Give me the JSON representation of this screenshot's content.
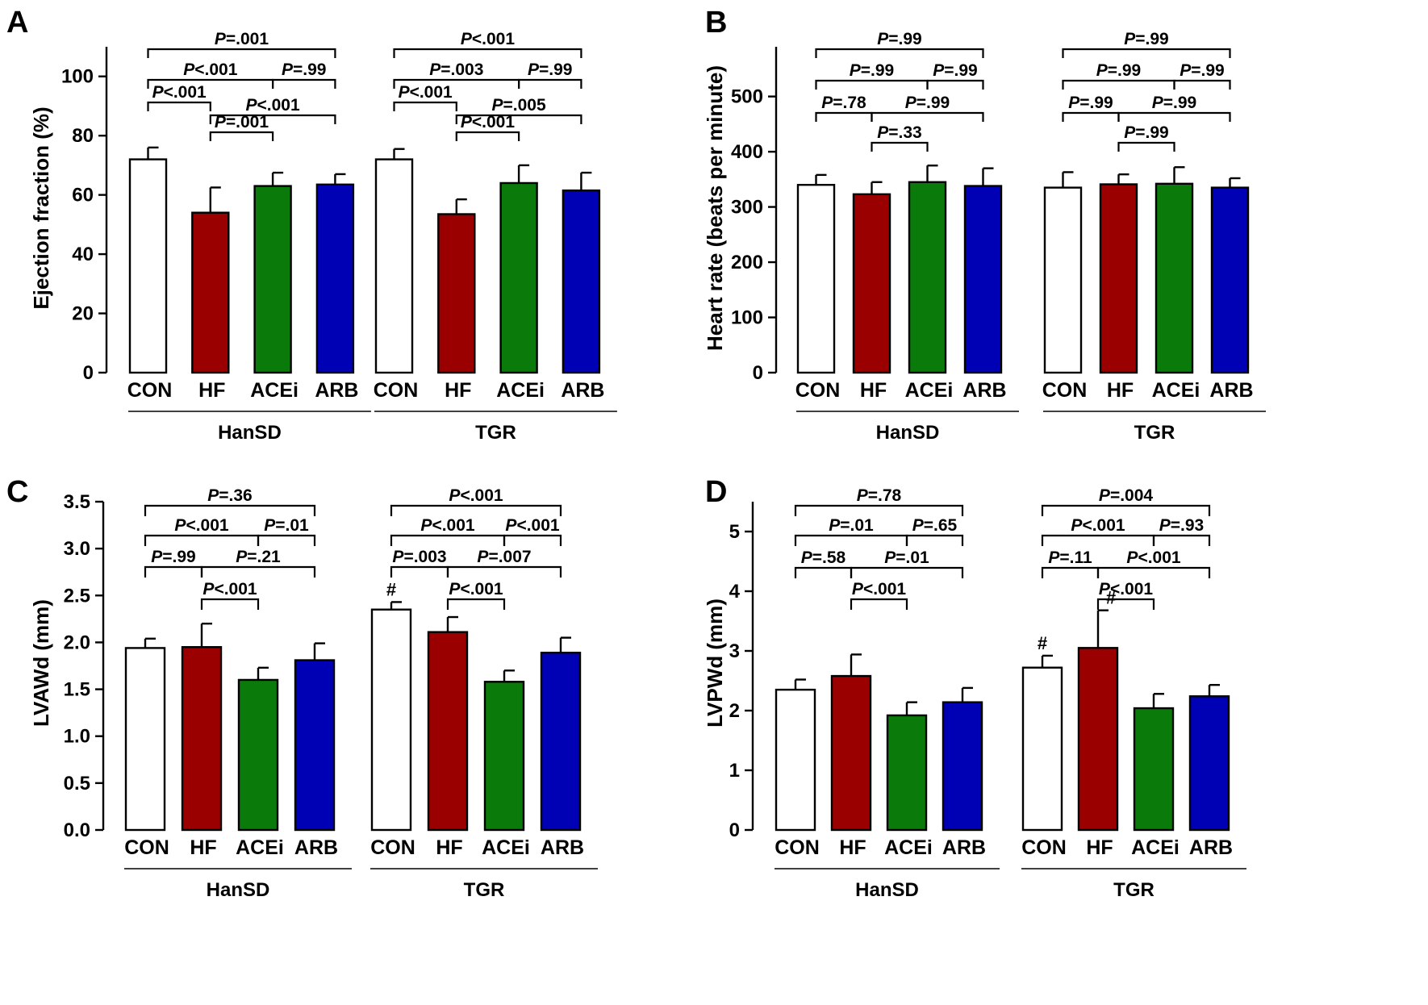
{
  "colors": {
    "CON": "#ffffff",
    "HF": "#9b0000",
    "ACEi": "#0a7a0a",
    "ARB": "#0000b4"
  },
  "chart_data": [
    {
      "type": "bar",
      "panel": "A",
      "ylabel": "Ejection fraction (%)",
      "ylim": [
        0,
        110
      ],
      "yticks": [
        "0",
        "20",
        "40",
        "60",
        "80",
        "100"
      ],
      "ytick_values": [
        0,
        20,
        40,
        60,
        80,
        100
      ],
      "categories": [
        "CON",
        "HF",
        "ACEi",
        "ARB"
      ],
      "groups": [
        {
          "name": "HanSD",
          "values": [
            72,
            54,
            63,
            63.5
          ],
          "errors": [
            4,
            8.5,
            4.5,
            3.5
          ],
          "marks": [
            "",
            "",
            "",
            ""
          ],
          "comparisons": [
            [
              "CON",
              "HF",
              "P<.001"
            ],
            [
              "HF",
              "ACEi",
              "P=.001"
            ],
            [
              "HF",
              "ARB",
              "P<.001"
            ],
            [
              "CON",
              "ACEi",
              "P<.001"
            ],
            [
              "ACEi",
              "ARB",
              "P=.99"
            ],
            [
              "CON",
              "ARB",
              "P=.001"
            ]
          ]
        },
        {
          "name": "TGR",
          "values": [
            72,
            53.5,
            64,
            61.5
          ],
          "errors": [
            3.5,
            5,
            6,
            6
          ],
          "marks": [
            "",
            "",
            "",
            ""
          ],
          "comparisons": [
            [
              "CON",
              "HF",
              "P<.001"
            ],
            [
              "HF",
              "ACEi",
              "P<.001"
            ],
            [
              "HF",
              "ARB",
              "P=.005"
            ],
            [
              "CON",
              "ACEi",
              "P=.003"
            ],
            [
              "ACEi",
              "ARB",
              "P=.99"
            ],
            [
              "CON",
              "ARB",
              "P<.001"
            ]
          ]
        }
      ]
    },
    {
      "type": "bar",
      "panel": "B",
      "ylabel": "Heart rate (beats per minute)",
      "ylim": [
        0,
        590
      ],
      "yticks": [
        "0",
        "100",
        "200",
        "300",
        "400",
        "500"
      ],
      "ytick_values": [
        0,
        100,
        200,
        300,
        400,
        500
      ],
      "categories": [
        "CON",
        "HF",
        "ACEi",
        "ARB"
      ],
      "groups": [
        {
          "name": "HanSD",
          "values": [
            340,
            323,
            345,
            338
          ],
          "errors": [
            18,
            22,
            30,
            32
          ],
          "marks": [
            "",
            "",
            "",
            ""
          ],
          "comparisons": [
            [
              "CON",
              "HF",
              "P=.78"
            ],
            [
              "HF",
              "ACEi",
              "P=.33"
            ],
            [
              "HF",
              "ARB",
              "P=.99"
            ],
            [
              "CON",
              "ACEi",
              "P=.99"
            ],
            [
              "ACEi",
              "ARB",
              "P=.99"
            ],
            [
              "CON",
              "ARB",
              "P=.99"
            ]
          ]
        },
        {
          "name": "TGR",
          "values": [
            335,
            341,
            342,
            335
          ],
          "errors": [
            28,
            18,
            30,
            17
          ],
          "marks": [
            "",
            "",
            "",
            ""
          ],
          "comparisons": [
            [
              "CON",
              "HF",
              "P=.99"
            ],
            [
              "HF",
              "ACEi",
              "P=.99"
            ],
            [
              "HF",
              "ARB",
              "P=.99"
            ],
            [
              "CON",
              "ACEi",
              "P=.99"
            ],
            [
              "ACEi",
              "ARB",
              "P=.99"
            ],
            [
              "CON",
              "ARB",
              "P=.99"
            ]
          ]
        }
      ]
    },
    {
      "type": "bar",
      "panel": "C",
      "ylabel": "LVAWd (mm)",
      "ylim": [
        0,
        3.5
      ],
      "yticks": [
        "0.0",
        "0.5",
        "1.0",
        "1.5",
        "2.0",
        "2.5",
        "3.0",
        "3.5"
      ],
      "ytick_values": [
        0,
        0.5,
        1,
        1.5,
        2,
        2.5,
        3,
        3.5
      ],
      "categories": [
        "CON",
        "HF",
        "ACEi",
        "ARB"
      ],
      "groups": [
        {
          "name": "HanSD",
          "values": [
            1.94,
            1.95,
            1.6,
            1.81
          ],
          "errors": [
            0.1,
            0.25,
            0.13,
            0.18
          ],
          "marks": [
            "",
            "",
            "",
            ""
          ],
          "comparisons": [
            [
              "CON",
              "HF",
              "P=.99"
            ],
            [
              "HF",
              "ACEi",
              "P<.001"
            ],
            [
              "HF",
              "ARB",
              "P=.21"
            ],
            [
              "CON",
              "ACEi",
              "P<.001"
            ],
            [
              "ACEi",
              "ARB",
              "P=.01"
            ],
            [
              "CON",
              "ARB",
              "P=.36"
            ]
          ]
        },
        {
          "name": "TGR",
          "values": [
            2.35,
            2.11,
            1.58,
            1.89
          ],
          "errors": [
            0.08,
            0.16,
            0.12,
            0.16
          ],
          "marks": [
            "#",
            "",
            "",
            ""
          ],
          "comparisons": [
            [
              "CON",
              "HF",
              "P=.003"
            ],
            [
              "HF",
              "ACEi",
              "P<.001"
            ],
            [
              "HF",
              "ARB",
              "P=.007"
            ],
            [
              "CON",
              "ACEi",
              "P<.001"
            ],
            [
              "ACEi",
              "ARB",
              "P<.001"
            ],
            [
              "CON",
              "ARB",
              "P<.001"
            ]
          ]
        }
      ]
    },
    {
      "type": "bar",
      "panel": "D",
      "ylabel": "LVPWd  (mm)",
      "ylim": [
        0,
        5.5
      ],
      "yticks": [
        "0",
        "1",
        "2",
        "3",
        "4",
        "5"
      ],
      "ytick_values": [
        0,
        1,
        2,
        3,
        4,
        5
      ],
      "categories": [
        "CON",
        "HF",
        "ACEi",
        "ARB"
      ],
      "groups": [
        {
          "name": "HanSD",
          "values": [
            2.35,
            2.58,
            1.92,
            2.14
          ],
          "errors": [
            0.17,
            0.36,
            0.22,
            0.24
          ],
          "marks": [
            "",
            "",
            "",
            ""
          ],
          "comparisons": [
            [
              "CON",
              "HF",
              "P=.58"
            ],
            [
              "HF",
              "ACEi",
              "P<.001"
            ],
            [
              "HF",
              "ARB",
              "P=.01"
            ],
            [
              "CON",
              "ACEi",
              "P=.01"
            ],
            [
              "ACEi",
              "ARB",
              "P=.65"
            ],
            [
              "CON",
              "ARB",
              "P=.78"
            ]
          ]
        },
        {
          "name": "TGR",
          "values": [
            2.72,
            3.05,
            2.04,
            2.24
          ],
          "errors": [
            0.2,
            0.63,
            0.24,
            0.19
          ],
          "marks": [
            "#",
            "#",
            "",
            ""
          ],
          "comparisons": [
            [
              "CON",
              "HF",
              "P=.11"
            ],
            [
              "HF",
              "ACEi",
              "P<.001"
            ],
            [
              "HF",
              "ARB",
              "P<.001"
            ],
            [
              "CON",
              "ACEi",
              "P<.001"
            ],
            [
              "ACEi",
              "ARB",
              "P=.93"
            ],
            [
              "CON",
              "ARB",
              "P=.004"
            ]
          ]
        }
      ]
    }
  ]
}
